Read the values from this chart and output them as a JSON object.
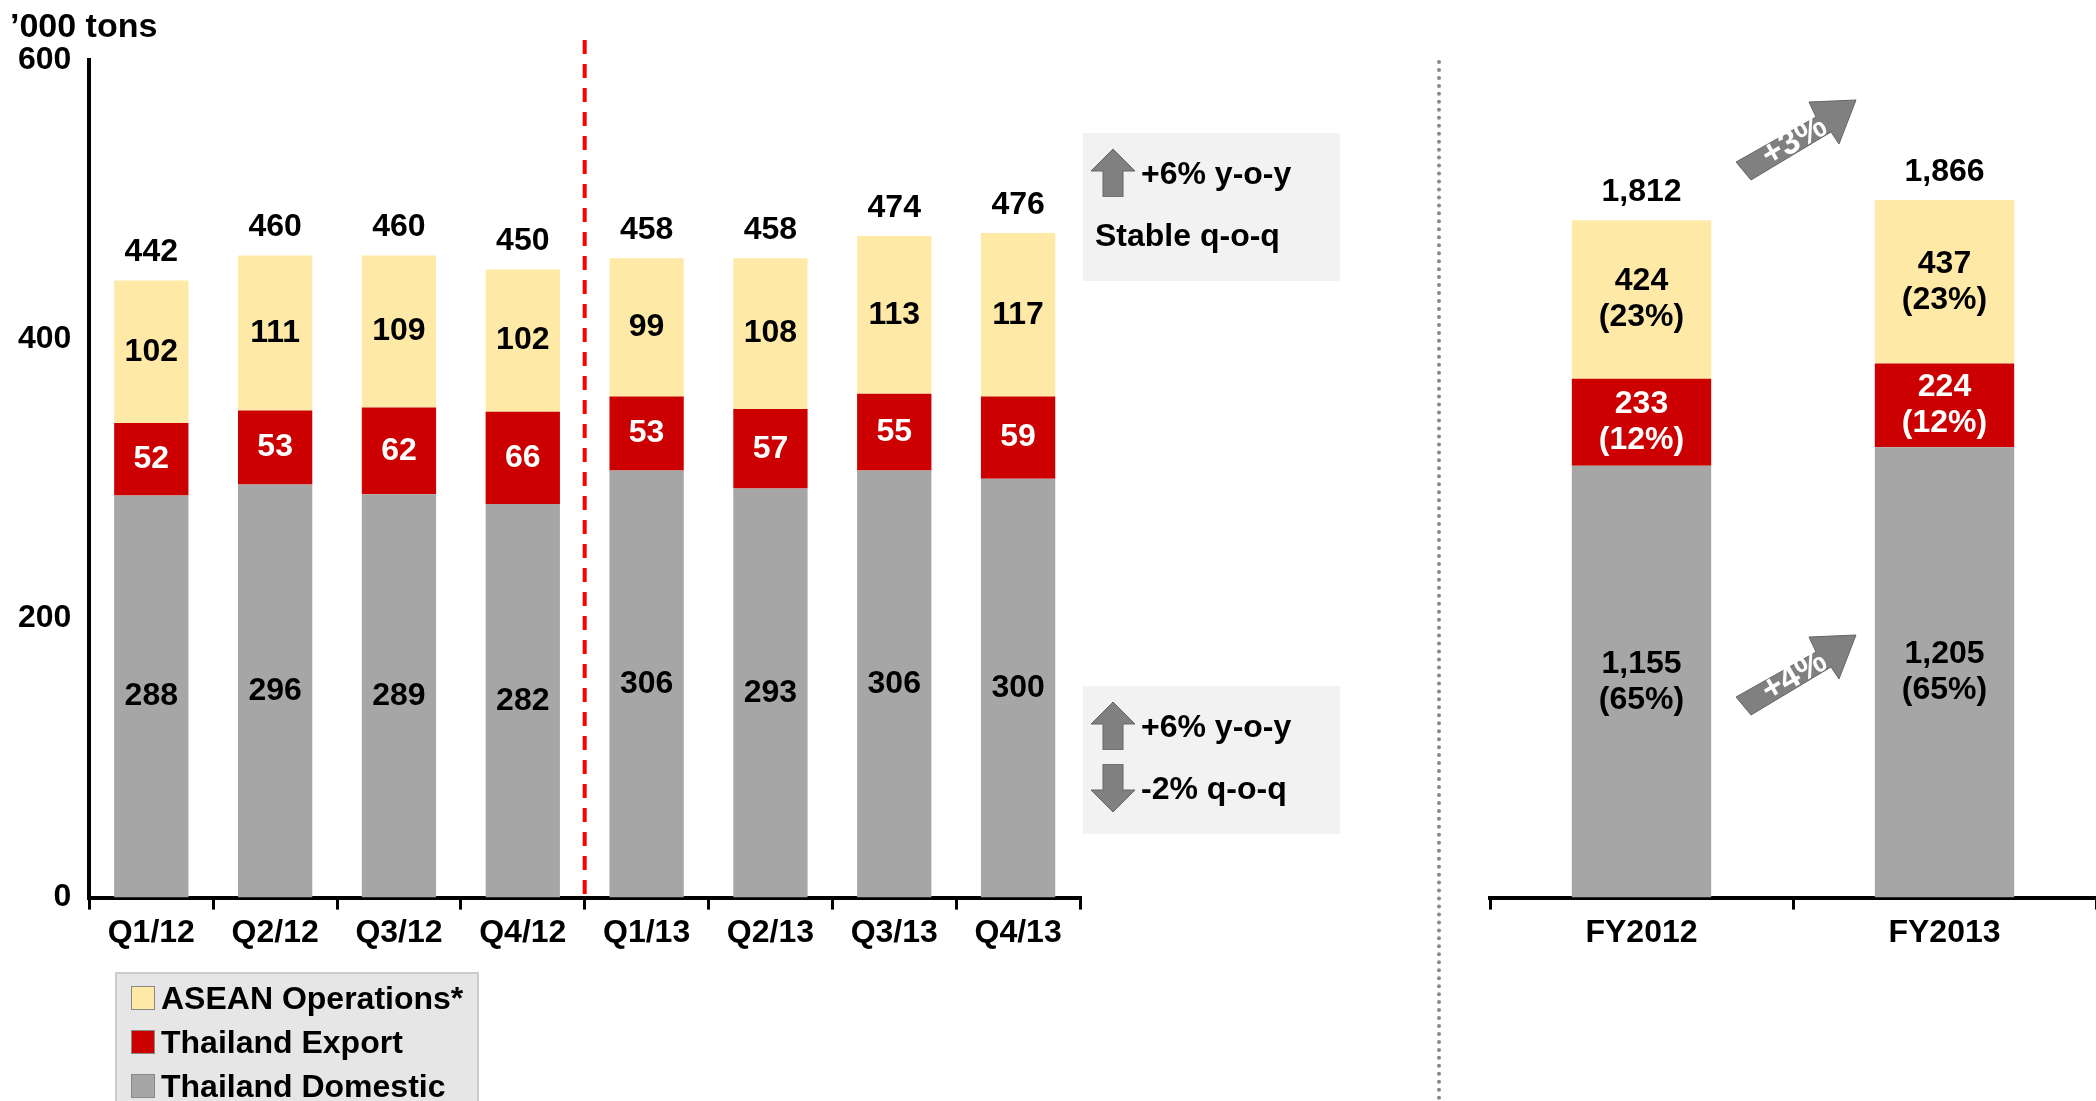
{
  "chart_data": [
    {
      "type": "bar",
      "stacked": true,
      "ylabel": "’000 tons",
      "categories": [
        "Q1/12",
        "Q2/12",
        "Q3/12",
        "Q4/12",
        "Q1/13",
        "Q2/13",
        "Q3/13",
        "Q4/13"
      ],
      "ylim": [
        0,
        600
      ],
      "yticks": [
        0,
        200,
        400,
        600
      ],
      "grid": false,
      "legend": "bottom left",
      "data_labels": true,
      "series": [
        {
          "name": "Thailand Domestic",
          "color": "#a6a6a6",
          "values": [
            288,
            296,
            289,
            282,
            306,
            293,
            306,
            300
          ]
        },
        {
          "name": "Thailand Export",
          "color": "#cc0000",
          "values": [
            52,
            53,
            62,
            66,
            53,
            57,
            55,
            59
          ]
        },
        {
          "name": "ASEAN Operations*",
          "color": "#feeaa6",
          "values": [
            102,
            111,
            109,
            102,
            99,
            108,
            113,
            117
          ]
        }
      ],
      "totals": [
        "442",
        "460",
        "460",
        "450",
        "458",
        "458",
        "474",
        "476"
      ],
      "ref_lines": [
        {
          "axis": "x",
          "value": "Q4/12",
          "color": "#ff0000",
          "line_style": "dashed"
        }
      ],
      "annotations": [
        "+6% y-o-y",
        "Stable q-o-q",
        "+6% y-o-y",
        "-2% q-o-q"
      ]
    },
    {
      "type": "bar",
      "stacked": true,
      "categories": [
        "FY2012",
        "FY2013"
      ],
      "tick_labels": "x",
      "grid": false,
      "legend": false,
      "series": [
        {
          "color": "#a6a6a6",
          "values": [
            1155,
            1205
          ],
          "value_labels": [
            "1,155\n(65%)",
            "1,205\n(65%)"
          ]
        },
        {
          "color": "#cc0000",
          "values": [
            233,
            224
          ],
          "value_labels": [
            "233\n(12%)",
            "224\n(12%)"
          ]
        },
        {
          "color": "#feeaa6",
          "values": [
            424,
            437
          ],
          "value_labels": [
            "424\n(23%)",
            "437\n(23%)"
          ]
        }
      ],
      "totals": [
        "1,812",
        "1,866"
      ],
      "annotations": [
        "+3%",
        "+4%"
      ]
    }
  ]
}
